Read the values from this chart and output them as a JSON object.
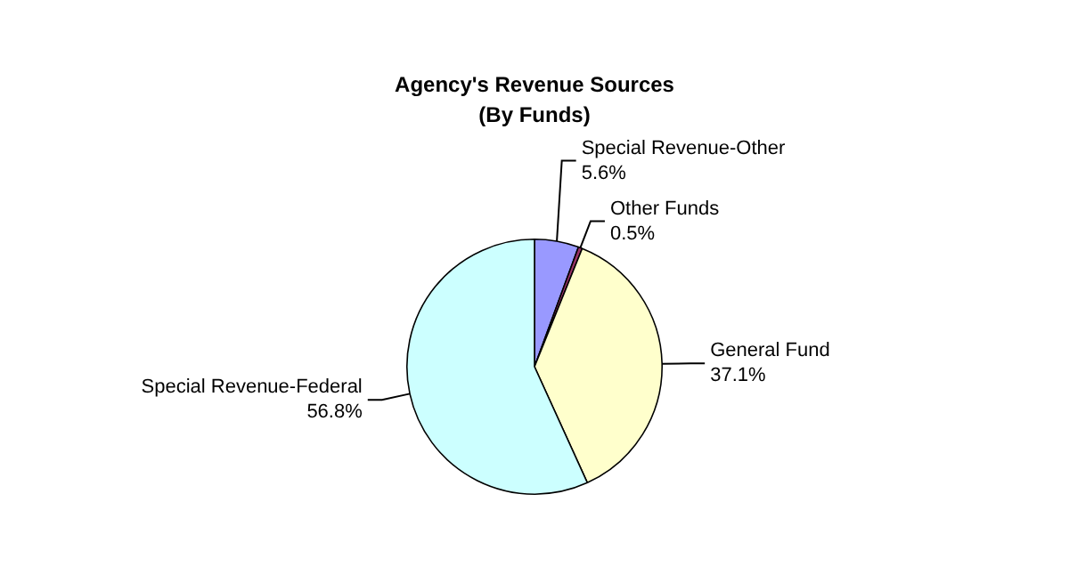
{
  "chart_data": {
    "type": "pie",
    "title": "Agency's Revenue Sources",
    "subtitle": "(By Funds)",
    "categories": [
      "Special Revenue-Other",
      "Other Funds",
      "General Fund",
      "Special Revenue-Federal"
    ],
    "values": [
      5.6,
      0.5,
      37.1,
      56.8
    ],
    "colors": [
      "#9999ff",
      "#993366",
      "#ffffcc",
      "#ccffff"
    ],
    "value_labels": [
      "5.6%",
      "0.5%",
      "37.1%",
      "56.8%"
    ],
    "legend": false
  }
}
